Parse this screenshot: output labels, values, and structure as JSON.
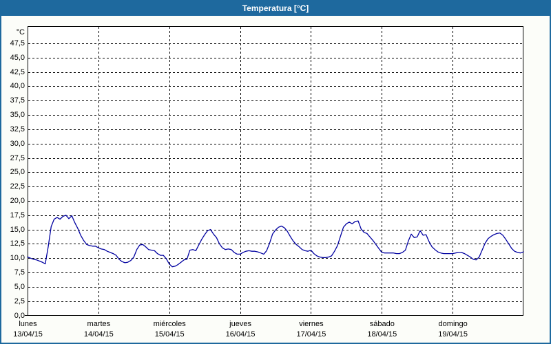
{
  "window": {
    "title": "Temperatura [°C]"
  },
  "colors": {
    "titlebar": "#1E699E",
    "window_border": "#1E699E",
    "background": "#FCFDF9",
    "plot_background": "#FFFFFF",
    "grid": "#000000",
    "line": "#0000A0",
    "text": "#000000"
  },
  "chart_data": {
    "type": "line",
    "title": "Temperatura [°C]",
    "unit_label": "°C",
    "ylim": [
      0,
      47.5
    ],
    "ytick_step": 2.5,
    "ytick_labels": [
      "0,0",
      "2,5",
      "5,0",
      "7,5",
      "10,0",
      "12,5",
      "15,0",
      "17,5",
      "20,0",
      "22,5",
      "25,0",
      "27,5",
      "30,0",
      "32,5",
      "35,0",
      "37,5",
      "40,0",
      "42,5",
      "45,0",
      "47,5"
    ],
    "grid": "dashed",
    "legend_position": "none",
    "x_days": [
      {
        "name": "lunes",
        "date": "13/04/15"
      },
      {
        "name": "martes",
        "date": "14/04/15"
      },
      {
        "name": "miércoles",
        "date": "15/04/15"
      },
      {
        "name": "jueves",
        "date": "16/04/15"
      },
      {
        "name": "viernes",
        "date": "17/04/15"
      },
      {
        "name": "sábado",
        "date": "18/04/15"
      },
      {
        "name": "domingo",
        "date": "19/04/15"
      }
    ],
    "points_per_day": 24,
    "series": [
      {
        "name": "Temperatura",
        "color": "#0000A0",
        "values": [
          10.2,
          10.0,
          9.8,
          9.7,
          9.5,
          9.3,
          9.0,
          12.0,
          15.5,
          16.8,
          17.1,
          16.8,
          17.3,
          17.5,
          16.9,
          17.4,
          16.2,
          15.2,
          14.0,
          13.1,
          12.4,
          12.2,
          12.1,
          12.1,
          11.8,
          11.6,
          11.5,
          11.2,
          11.0,
          10.8,
          10.5,
          9.8,
          9.4,
          9.2,
          9.3,
          9.6,
          10.2,
          11.5,
          12.3,
          12.4,
          12.0,
          11.5,
          11.4,
          11.3,
          10.8,
          10.5,
          10.5,
          9.9,
          9.0,
          8.5,
          8.6,
          8.9,
          9.3,
          9.7,
          9.8,
          11.4,
          11.5,
          11.3,
          12.3,
          13.3,
          14.1,
          14.8,
          15.0,
          14.2,
          13.6,
          12.5,
          11.8,
          11.5,
          11.6,
          11.5,
          11.0,
          10.7,
          10.7,
          11.0,
          11.2,
          11.3,
          11.2,
          11.2,
          11.1,
          10.9,
          10.7,
          11.3,
          12.6,
          14.2,
          14.9,
          15.4,
          15.6,
          15.3,
          14.7,
          13.8,
          13.0,
          12.4,
          12.0,
          11.5,
          11.3,
          11.2,
          11.4,
          10.8,
          10.4,
          10.2,
          10.1,
          10.1,
          10.2,
          10.4,
          11.2,
          12.2,
          13.8,
          15.4,
          16.0,
          16.3,
          16.0,
          16.4,
          16.5,
          15.1,
          14.5,
          14.3,
          13.7,
          13.1,
          12.4,
          11.7,
          11.0,
          10.9,
          10.9,
          10.9,
          10.9,
          10.8,
          10.8,
          11.0,
          11.4,
          13.0,
          14.2,
          13.6,
          13.7,
          14.8,
          14.0,
          14.1,
          12.9,
          12.0,
          11.5,
          11.1,
          10.9,
          10.8,
          10.8,
          10.8,
          10.8,
          10.9,
          11.0,
          11.0,
          10.8,
          10.5,
          10.2,
          9.8,
          9.7,
          10.2,
          11.4,
          12.6,
          13.4,
          13.8,
          14.1,
          14.3,
          14.4,
          14.0,
          13.3,
          12.5,
          11.7,
          11.2,
          11.0,
          10.9,
          11.1
        ]
      }
    ]
  }
}
